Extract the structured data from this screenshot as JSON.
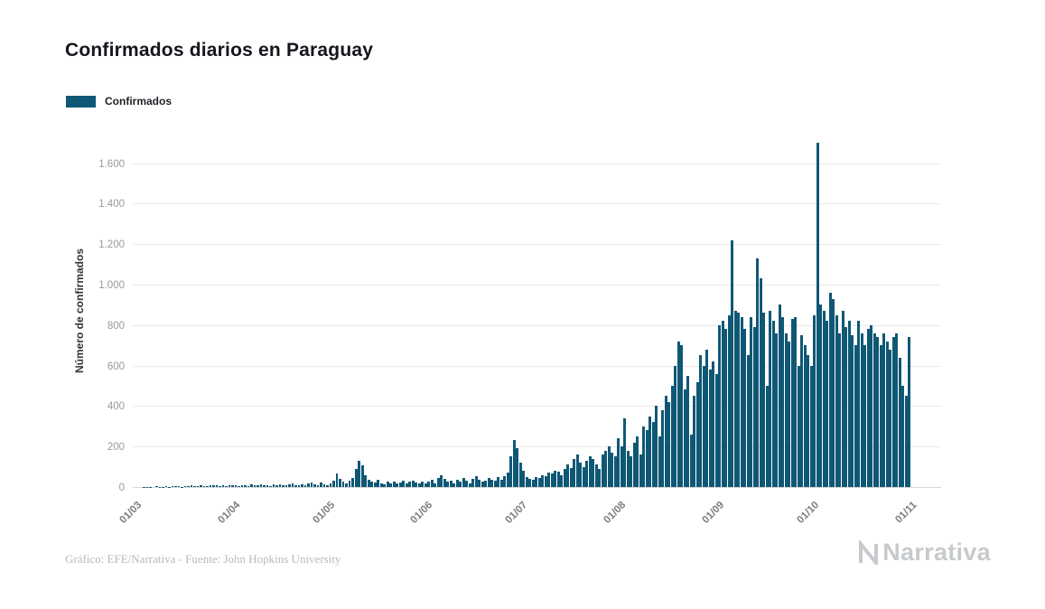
{
  "legend": {
    "label": "Confirmados"
  },
  "footer": {
    "credit": "Gráfico: EFE/Narrativa - Fuente: John Hopkins University",
    "logo_text": "Narrativa"
  },
  "chart_data": {
    "type": "bar",
    "title": "Confirmados diarios en Paraguay",
    "xlabel": "",
    "ylabel": "Número de confirmados",
    "grid": true,
    "legend_position": "top-left",
    "bar_color": "#0f5875",
    "ylim": [
      0,
      1750
    ],
    "yticks": [
      0,
      200,
      400,
      600,
      800,
      1000,
      1200,
      1400,
      1600
    ],
    "ytick_labels": [
      "0",
      "200",
      "400",
      "600",
      "800",
      "1.000",
      "1.200",
      "1.400",
      "1.600"
    ],
    "xtick_labels": [
      "01/03",
      "01/04",
      "01/05",
      "01/06",
      "01/07",
      "01/08",
      "01/09",
      "01/10",
      "01/11"
    ],
    "xtick_positions_days": [
      0,
      31,
      61,
      92,
      122,
      153,
      184,
      214,
      245
    ],
    "x_start": "01/03",
    "x_end": "01/11",
    "x_unit": "day",
    "total_days": 245,
    "series": [
      {
        "name": "Confirmados",
        "values": [
          0,
          0,
          1,
          2,
          1,
          0,
          3,
          2,
          1,
          4,
          2,
          3,
          5,
          3,
          2,
          6,
          4,
          8,
          5,
          3,
          9,
          6,
          5,
          8,
          11,
          7,
          5,
          9,
          6,
          8,
          10,
          7,
          5,
          11,
          8,
          6,
          13,
          9,
          7,
          14,
          11,
          8,
          5,
          12,
          9,
          15,
          10,
          7,
          13,
          19,
          11,
          8,
          14,
          10,
          17,
          24,
          12,
          9,
          21,
          15,
          11,
          20,
          30,
          65,
          40,
          25,
          20,
          30,
          45,
          90,
          130,
          105,
          60,
          35,
          28,
          22,
          38,
          20,
          15,
          26,
          20,
          28,
          16,
          24,
          33,
          18,
          26,
          30,
          22,
          18,
          25,
          20,
          25,
          35,
          20,
          45,
          60,
          40,
          25,
          30,
          20,
          35,
          25,
          45,
          30,
          20,
          40,
          55,
          35,
          25,
          30,
          45,
          38,
          30,
          50,
          35,
          55,
          70,
          150,
          230,
          190,
          120,
          80,
          50,
          40,
          35,
          50,
          45,
          60,
          55,
          70,
          65,
          80,
          75,
          60,
          90,
          110,
          95,
          140,
          160,
          120,
          100,
          130,
          150,
          140,
          110,
          90,
          160,
          180,
          200,
          170,
          150,
          240,
          200,
          340,
          180,
          150,
          220,
          250,
          160,
          300,
          280,
          350,
          320,
          400,
          250,
          380,
          450,
          420,
          500,
          600,
          720,
          700,
          480,
          550,
          260,
          450,
          520,
          650,
          600,
          680,
          580,
          620,
          560,
          800,
          820,
          780,
          850,
          1220,
          870,
          860,
          840,
          780,
          650,
          840,
          790,
          1130,
          1030,
          860,
          500,
          870,
          820,
          760,
          900,
          840,
          760,
          720,
          830,
          840,
          600,
          750,
          700,
          650,
          600,
          850,
          1700,
          900,
          870,
          820,
          960,
          930,
          850,
          760,
          870,
          790,
          820,
          750,
          700,
          820,
          760,
          700,
          780,
          800,
          760,
          740,
          700,
          760,
          720,
          680,
          740,
          760,
          640,
          500,
          450,
          740
        ]
      }
    ]
  }
}
